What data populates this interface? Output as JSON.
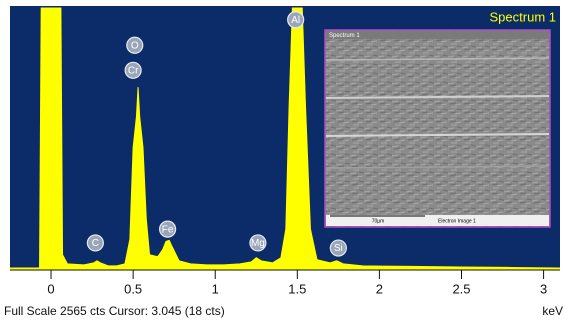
{
  "chart_data": {
    "type": "area",
    "title": "Spectrum 1",
    "x_label": "keV",
    "status": "Full Scale 2565 cts Cursor: 3.045  (18 cts)",
    "color": "#ffff00",
    "background": "#0c2b69",
    "xlim": [
      -0.25,
      3.1
    ],
    "ylim": [
      0,
      2565
    ],
    "xticks": [
      0,
      0.5,
      1,
      1.5,
      2,
      2.5,
      3
    ],
    "x": [
      -0.25,
      -0.07,
      -0.06,
      0.06,
      0.07,
      0.1,
      0.2,
      0.26,
      0.28,
      0.3,
      0.35,
      0.4,
      0.45,
      0.48,
      0.5,
      0.52,
      0.53,
      0.54,
      0.56,
      0.58,
      0.6,
      0.65,
      0.68,
      0.7,
      0.72,
      0.74,
      0.78,
      0.85,
      0.95,
      1.05,
      1.15,
      1.22,
      1.25,
      1.28,
      1.35,
      1.4,
      1.43,
      1.45,
      1.47,
      1.53,
      1.55,
      1.58,
      1.62,
      1.7,
      1.74,
      1.78,
      1.9,
      2.2,
      2.5,
      2.8,
      3.1
    ],
    "values": [
      20,
      20,
      2565,
      2565,
      150,
      60,
      50,
      70,
      90,
      70,
      40,
      40,
      60,
      300,
      1200,
      1500,
      1790,
      1500,
      1200,
      500,
      150,
      130,
      200,
      280,
      290,
      220,
      90,
      60,
      50,
      50,
      60,
      80,
      120,
      90,
      70,
      120,
      400,
      1600,
      2565,
      2565,
      1600,
      400,
      100,
      70,
      90,
      60,
      40,
      35,
      30,
      25,
      20
    ],
    "annotations": [
      {
        "text": "O",
        "x": 0.51,
        "y": 2200
      },
      {
        "text": "Cr",
        "x": 0.5,
        "y": 1955
      },
      {
        "text": "C",
        "x": 0.27,
        "y": 265
      },
      {
        "text": "Fe",
        "x": 0.71,
        "y": 400
      },
      {
        "text": "Mg",
        "x": 1.26,
        "y": 265
      },
      {
        "text": "Al",
        "x": 1.49,
        "y": 2450
      },
      {
        "text": "Si",
        "x": 1.75,
        "y": 215
      }
    ],
    "inset": {
      "title": "Spectrum 1",
      "scale": "70µm",
      "caption": "Electron Image 1"
    }
  }
}
